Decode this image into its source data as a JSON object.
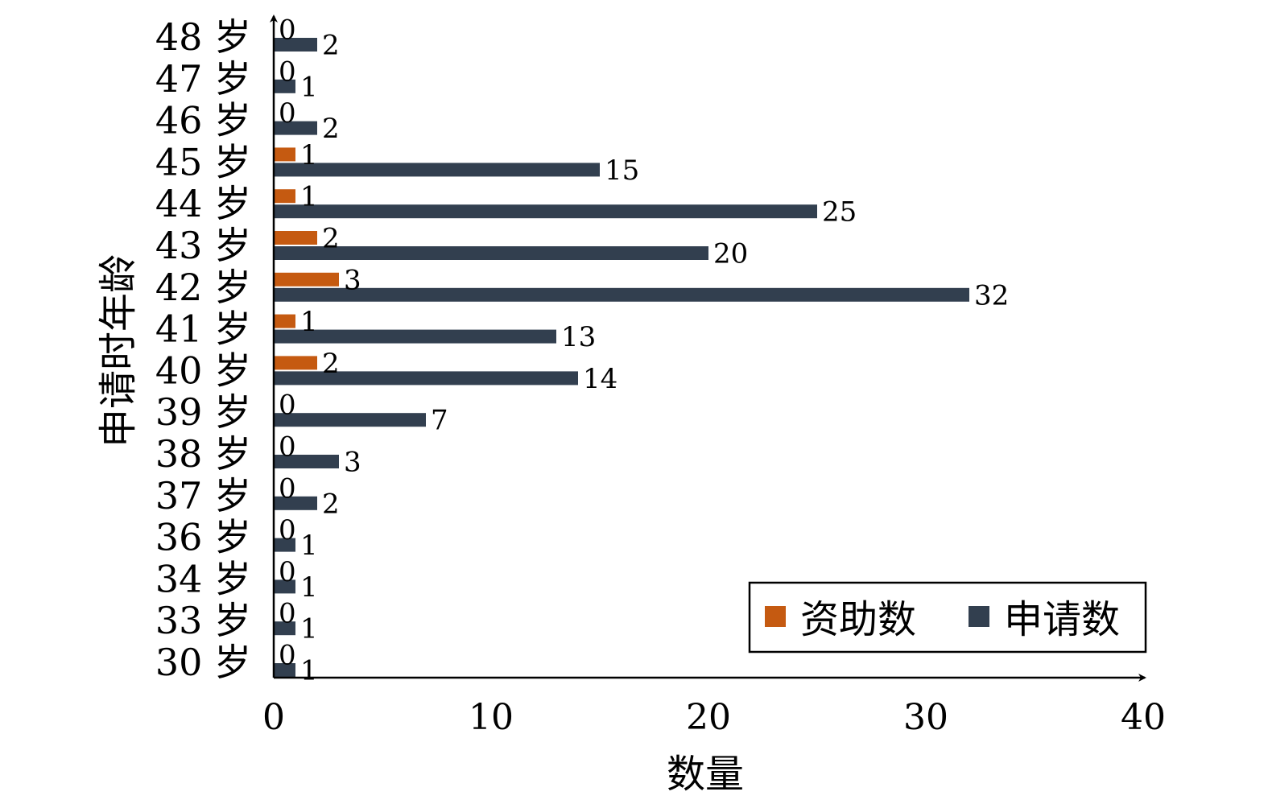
{
  "chart_data": {
    "type": "bar",
    "orientation": "horizontal",
    "categories": [
      "48 岁",
      "47 岁",
      "46 岁",
      "45 岁",
      "44 岁",
      "43 岁",
      "42 岁",
      "41 岁",
      "40 岁",
      "39 岁",
      "38 岁",
      "37 岁",
      "36 岁",
      "34 岁",
      "33 岁",
      "30 岁"
    ],
    "series": [
      {
        "name": "资助数",
        "color": "#c55a11",
        "values": [
          0,
          0,
          0,
          1,
          1,
          2,
          3,
          1,
          2,
          0,
          0,
          0,
          0,
          0,
          0,
          0
        ]
      },
      {
        "name": "申请数",
        "color": "#323f4f",
        "values": [
          2,
          1,
          2,
          15,
          25,
          20,
          32,
          13,
          14,
          7,
          3,
          2,
          1,
          1,
          1,
          1
        ]
      }
    ],
    "xlabel": "数量",
    "ylabel": "申请时年龄",
    "xlim": [
      0,
      40
    ],
    "xticks": [
      0,
      10,
      20,
      30,
      40
    ],
    "grid": false,
    "legend_position": "bottom-right"
  }
}
